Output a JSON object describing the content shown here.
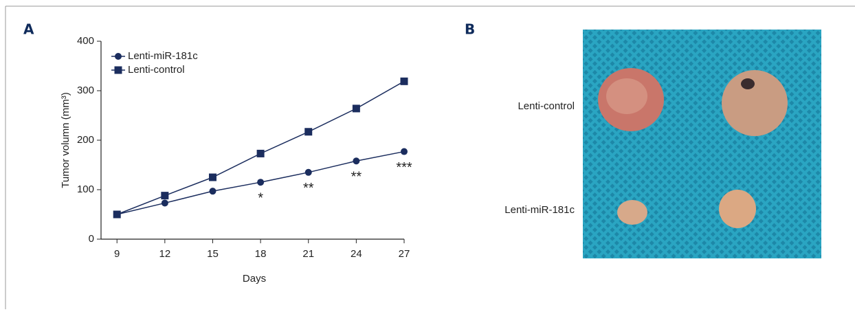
{
  "panel_labels": [
    "A",
    "B"
  ],
  "chart_data": {
    "type": "line",
    "x": [
      9,
      12,
      15,
      18,
      21,
      24,
      27
    ],
    "series": [
      {
        "name": "Lenti-miR-181c",
        "color": "#1b2d5e",
        "marker": "circle",
        "values": [
          50,
          73,
          97,
          115,
          135,
          158,
          177
        ]
      },
      {
        "name": "Lenti-control",
        "color": "#1b2d5e",
        "marker": "square",
        "values": [
          50,
          88,
          125,
          173,
          217,
          264,
          319
        ]
      }
    ],
    "xlim": [
      8,
      27
    ],
    "xticks": [
      9,
      12,
      15,
      18,
      21,
      24,
      27
    ],
    "ylim": [
      0,
      400
    ],
    "yticks": [
      0,
      100,
      200,
      300,
      400
    ],
    "xlabel": "Days",
    "ylabel": "Tumor volumn (mm³)",
    "legend": "upper-left",
    "annotations": [
      {
        "x": 18,
        "text": "*"
      },
      {
        "x": 21,
        "text": "**"
      },
      {
        "x": 24,
        "text": "**"
      },
      {
        "x": 27,
        "text": "***"
      }
    ]
  },
  "photo_labels": [
    "Lenti-control",
    "Lenti-miR-181c"
  ]
}
